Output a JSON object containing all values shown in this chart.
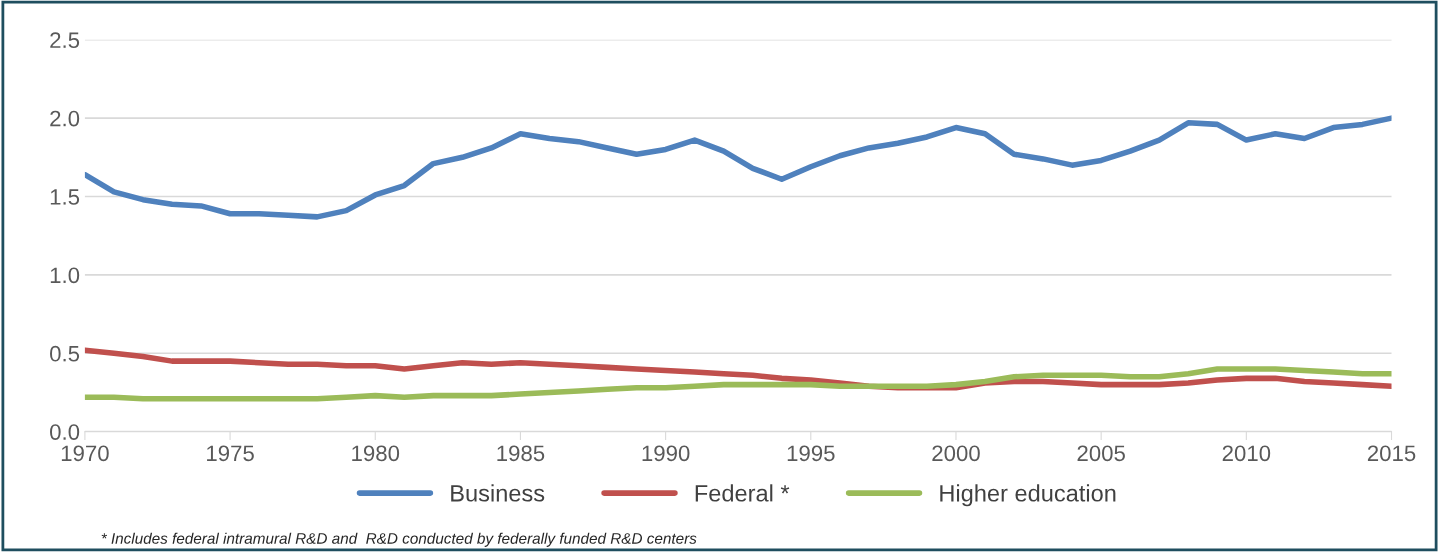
{
  "chart_data": {
    "type": "line",
    "x": [
      1970,
      1971,
      1972,
      1973,
      1974,
      1975,
      1976,
      1977,
      1978,
      1979,
      1980,
      1981,
      1982,
      1983,
      1984,
      1985,
      1986,
      1987,
      1988,
      1989,
      1990,
      1991,
      1992,
      1993,
      1994,
      1995,
      1996,
      1997,
      1998,
      1999,
      2000,
      2001,
      2002,
      2003,
      2004,
      2005,
      2006,
      2007,
      2008,
      2009,
      2010,
      2011,
      2012,
      2013,
      2014,
      2015
    ],
    "series": [
      {
        "name": "Business",
        "color": "#4f81bd",
        "values": [
          1.64,
          1.53,
          1.48,
          1.45,
          1.44,
          1.39,
          1.39,
          1.38,
          1.37,
          1.41,
          1.51,
          1.57,
          1.71,
          1.75,
          1.81,
          1.9,
          1.87,
          1.85,
          1.81,
          1.77,
          1.8,
          1.86,
          1.79,
          1.68,
          1.61,
          1.69,
          1.76,
          1.81,
          1.84,
          1.88,
          1.94,
          1.9,
          1.77,
          1.74,
          1.7,
          1.73,
          1.79,
          1.86,
          1.97,
          1.96,
          1.86,
          1.9,
          1.87,
          1.94,
          1.96,
          2.0
        ]
      },
      {
        "name": "Federal *",
        "color": "#c0504d",
        "values": [
          0.52,
          0.5,
          0.48,
          0.45,
          0.45,
          0.45,
          0.44,
          0.43,
          0.43,
          0.42,
          0.42,
          0.4,
          0.42,
          0.44,
          0.43,
          0.44,
          0.43,
          0.42,
          0.41,
          0.4,
          0.39,
          0.38,
          0.37,
          0.36,
          0.34,
          0.33,
          0.31,
          0.29,
          0.28,
          0.28,
          0.28,
          0.31,
          0.32,
          0.32,
          0.31,
          0.3,
          0.3,
          0.3,
          0.31,
          0.33,
          0.34,
          0.34,
          0.32,
          0.31,
          0.3,
          0.29
        ]
      },
      {
        "name": "Higher education",
        "color": "#9bbb59",
        "values": [
          0.22,
          0.22,
          0.21,
          0.21,
          0.21,
          0.21,
          0.21,
          0.21,
          0.21,
          0.22,
          0.23,
          0.22,
          0.23,
          0.23,
          0.23,
          0.24,
          0.25,
          0.26,
          0.27,
          0.28,
          0.28,
          0.29,
          0.3,
          0.3,
          0.3,
          0.3,
          0.29,
          0.29,
          0.29,
          0.29,
          0.3,
          0.32,
          0.35,
          0.36,
          0.36,
          0.36,
          0.35,
          0.35,
          0.37,
          0.4,
          0.4,
          0.4,
          0.39,
          0.38,
          0.37,
          0.37
        ]
      }
    ],
    "xlim": [
      1970,
      2015
    ],
    "xticks": [
      1970,
      1975,
      1980,
      1985,
      1990,
      1995,
      2000,
      2005,
      2010,
      2015
    ],
    "ylim": [
      0,
      2.5
    ],
    "yticks": [
      {
        "value": 0,
        "label": "0.0"
      },
      {
        "value": 0.5,
        "label": "0.5"
      },
      {
        "value": 1,
        "label": "1.0"
      },
      {
        "value": 1.5,
        "label": "1.5"
      },
      {
        "value": 2,
        "label": "2.0"
      },
      {
        "value": 2.5,
        "label": "2.5"
      }
    ],
    "grid": "y",
    "legend": "bottom",
    "marker": "none",
    "line_style": "solid",
    "annotations": [
      "* Includes federal intramural R&D and  R&D conducted by federally funded R&D centers"
    ]
  }
}
